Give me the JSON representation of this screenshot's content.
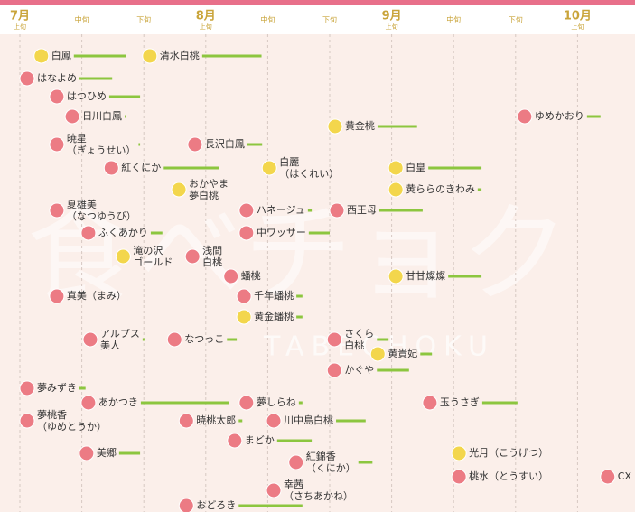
{
  "chart_data": {
    "type": "gantt",
    "watermark": "食べチョク",
    "watermark_sub": "TABECHOKU",
    "xlim": [
      0,
      9.9
    ],
    "months": [
      {
        "value": 0,
        "label": "7月"
      },
      {
        "value": 3,
        "label": "8月"
      },
      {
        "value": 6,
        "label": "9月"
      },
      {
        "value": 9,
        "label": "10月"
      }
    ],
    "xticks": [
      {
        "value": 0,
        "label": "上旬"
      },
      {
        "value": 1,
        "label": "中旬"
      },
      {
        "value": 2,
        "label": "下旬"
      },
      {
        "value": 3,
        "label": "上旬"
      },
      {
        "value": 4,
        "label": "中旬"
      },
      {
        "value": 5,
        "label": "下旬"
      },
      {
        "value": 6,
        "label": "上旬"
      },
      {
        "value": 7,
        "label": "中旬"
      },
      {
        "value": 8,
        "label": "下旬"
      },
      {
        "value": 9,
        "label": "上旬"
      }
    ],
    "colors": {
      "pink": "#ec7b84",
      "yellow": "#f3d64c",
      "bar": "#8cc63f"
    },
    "rows": [
      [
        {
          "label": [
            "白鳳"
          ],
          "start": 0.23,
          "end": 1.72,
          "color": "yellow"
        },
        {
          "label": [
            "清水白桃"
          ],
          "start": 1.98,
          "end": 3.9,
          "color": "yellow"
        }
      ],
      [
        {
          "label": [
            "はなよめ"
          ],
          "start": 0,
          "end": 1.49,
          "color": "pink"
        }
      ],
      [
        {
          "label": [
            "はつひめ"
          ],
          "start": 0.48,
          "end": 1.94,
          "color": "pink"
        }
      ],
      [
        {
          "label": [
            "日川白鳳"
          ],
          "start": 0.73,
          "end": 1.72,
          "color": "pink"
        },
        {
          "label": [
            "ゆめかおり"
          ],
          "start": 8.03,
          "end": 9.37,
          "color": "pink"
        }
      ],
      [
        {
          "label": [
            "黄金桃"
          ],
          "start": 4.97,
          "end": 6.41,
          "color": "yellow"
        }
      ],
      [
        {
          "label": [
            "暁星",
            "（ぎょうせい）"
          ],
          "start": 0.48,
          "end": 1.94,
          "color": "pink"
        },
        {
          "label": [
            "長沢白鳳"
          ],
          "start": 2.71,
          "end": 3.91,
          "color": "pink"
        }
      ],
      [
        {
          "label": [
            "紅くにか"
          ],
          "start": 1.36,
          "end": 3.22,
          "color": "pink"
        },
        {
          "label": [
            "白麗",
            "（はくれい）"
          ],
          "start": 3.91,
          "end": 4.93,
          "color": "yellow"
        },
        {
          "label": [
            "白皇"
          ],
          "start": 5.95,
          "end": 7.45,
          "color": "yellow"
        }
      ],
      [
        {
          "label": [
            "おかやま",
            "夢白桃"
          ],
          "start": 2.45,
          "end": 3.3,
          "color": "yellow"
        },
        {
          "label": [
            "黄ららのきわみ"
          ],
          "start": 5.95,
          "end": 7.45,
          "color": "yellow"
        }
      ],
      [
        {
          "label": [
            "夏雄美",
            "（なつゆうび）"
          ],
          "start": 0.48,
          "end": 1.57,
          "color": "pink"
        },
        {
          "label": [
            "ハネージュ"
          ],
          "start": 3.54,
          "end": 4.71,
          "color": "pink"
        },
        {
          "label": [
            "西王母"
          ],
          "start": 5.0,
          "end": 6.5,
          "color": "pink"
        }
      ],
      [
        {
          "label": [
            "ふくあかり"
          ],
          "start": 0.99,
          "end": 2.3,
          "color": "pink"
        },
        {
          "label": [
            "中ワッサー"
          ],
          "start": 3.54,
          "end": 5.0,
          "color": "pink"
        }
      ],
      [
        {
          "label": [
            "滝の沢",
            "ゴールド"
          ],
          "start": 1.55,
          "end": 2.45,
          "color": "yellow"
        },
        {
          "label": [
            "浅間",
            "白桃"
          ],
          "start": 2.67,
          "end": 3.25,
          "color": "pink"
        }
      ],
      [
        {
          "label": [
            "蟠桃"
          ],
          "start": 3.29,
          "end": 3.9,
          "color": "pink"
        },
        {
          "label": [
            "甘甘燦燦"
          ],
          "start": 5.95,
          "end": 7.45,
          "color": "yellow"
        }
      ],
      [
        {
          "label": [
            "真美（まみ）"
          ],
          "start": 0.48,
          "end": 1.65,
          "color": "pink"
        },
        {
          "label": [
            "千年蟠桃"
          ],
          "start": 3.5,
          "end": 4.56,
          "color": "pink"
        }
      ],
      [
        {
          "label": [
            "黄金蟠桃"
          ],
          "start": 3.5,
          "end": 4.56,
          "color": "yellow"
        }
      ],
      [
        {
          "label": [
            "アルプス",
            "美人"
          ],
          "start": 1.02,
          "end": 2.01,
          "color": "pink"
        },
        {
          "label": [
            "なつっこ"
          ],
          "start": 2.38,
          "end": 3.5,
          "color": "pink"
        },
        {
          "label": [
            "さくら",
            "白桃"
          ],
          "start": 4.96,
          "end": 5.95,
          "color": "pink"
        }
      ],
      [
        {
          "label": [
            "黄貴妃"
          ],
          "start": 5.66,
          "end": 6.65,
          "color": "yellow"
        }
      ],
      [
        {
          "label": [
            "かぐや"
          ],
          "start": 4.96,
          "end": 6.28,
          "color": "pink"
        }
      ],
      [
        {
          "label": [
            "夢みずき"
          ],
          "start": 0,
          "end": 1.06,
          "color": "pink"
        }
      ],
      [
        {
          "label": [
            "あかつき"
          ],
          "start": 0.99,
          "end": 3.37,
          "color": "pink"
        },
        {
          "label": [
            "夢しらね"
          ],
          "start": 3.54,
          "end": 4.56,
          "color": "pink"
        },
        {
          "label": [
            "玉うさぎ"
          ],
          "start": 6.5,
          "end": 8.03,
          "color": "pink"
        }
      ],
      [
        {
          "label": [
            "夢桃香",
            "（ゆめとうか）"
          ],
          "start": 0,
          "end": 1.06,
          "color": "pink"
        },
        {
          "label": [
            "暁桃太郎"
          ],
          "start": 2.57,
          "end": 3.59,
          "color": "pink"
        },
        {
          "label": [
            "川中島白桃"
          ],
          "start": 3.98,
          "end": 5.58,
          "color": "pink"
        }
      ],
      [
        {
          "label": [
            "まどか"
          ],
          "start": 3.35,
          "end": 4.71,
          "color": "pink"
        }
      ],
      [
        {
          "label": [
            "美郷"
          ],
          "start": 0.96,
          "end": 1.94,
          "color": "pink"
        },
        {
          "label": [
            "光月（こうげつ）"
          ],
          "start": 6.97,
          "end": 8.5,
          "color": "yellow"
        }
      ],
      [
        {
          "label": [
            "紅錦香",
            "（くにか）"
          ],
          "start": 4.34,
          "end": 5.69,
          "color": "pink"
        }
      ],
      [
        {
          "label": [
            "桃水（とうすい）"
          ],
          "start": 6.97,
          "end": 8.1,
          "color": "pink"
        },
        {
          "label": [
            "CX"
          ],
          "start": 9.37,
          "end": 9.9,
          "color": "pink"
        }
      ],
      [
        {
          "label": [
            "幸茜",
            "（さちあかね）"
          ],
          "start": 3.98,
          "end": 4.64,
          "color": "pink"
        }
      ],
      [
        {
          "label": [
            "おどろき"
          ],
          "start": 2.57,
          "end": 4.56,
          "color": "pink"
        }
      ]
    ]
  }
}
